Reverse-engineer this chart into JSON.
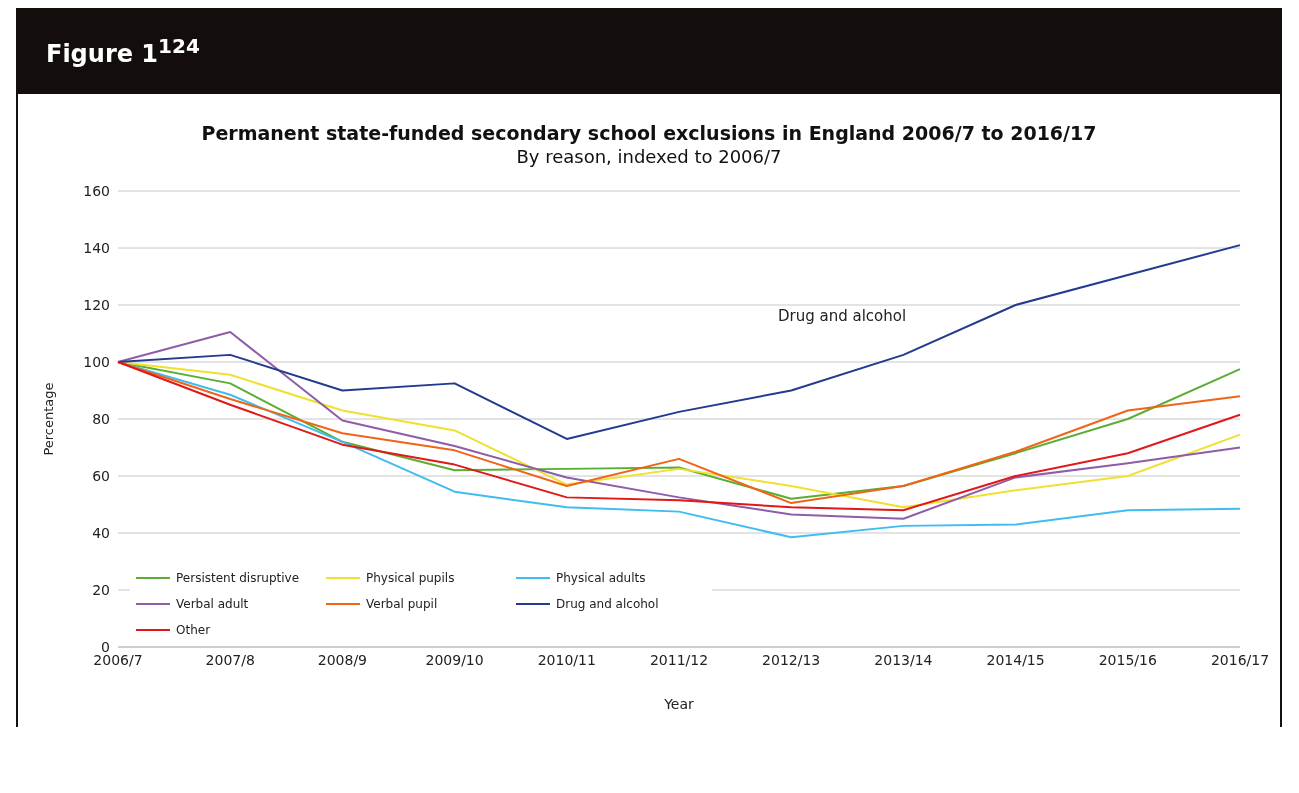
{
  "chart_data": {
    "type": "line",
    "title": "Permanent state-funded secondary school exclusions in England 2006/7 to 2016/17",
    "subtitle": "By reason, indexed to 2006/7",
    "xlabel": "Year",
    "ylabel": "Percentage",
    "annotations": [
      "Figure 1$^{124}$",
      "Drug and alcohol"
    ],
    "categories": [
      "2006/7",
      "2007/8",
      "2008/9",
      "2009/10",
      "2010/11",
      "2011/12",
      "2012/13",
      "2013/14",
      "2014/15",
      "2015/16",
      "2016/17"
    ],
    "series": [
      {
        "name": "Persistent disruptive",
        "color": "#5aae32",
        "values": [
          100,
          92.5,
          72,
          62,
          62.5,
          63,
          52,
          56.5,
          68,
          80,
          97.5
        ]
      },
      {
        "name": "Physical pupils",
        "color": "#f0e030",
        "values": [
          100,
          95.5,
          83,
          76,
          57,
          62.5,
          56.5,
          49,
          55,
          60,
          74.5
        ]
      },
      {
        "name": "Physical adults",
        "color": "#3fbdf0",
        "values": [
          100,
          88.5,
          72,
          54.5,
          49,
          47.5,
          38.5,
          42.5,
          43,
          48,
          48.5
        ]
      },
      {
        "name": "Verbal adult",
        "color": "#8e5ca8",
        "values": [
          100,
          110.5,
          79.5,
          70.5,
          59.5,
          52.5,
          46.5,
          45,
          59.5,
          64.5,
          70
        ]
      },
      {
        "name": "Verbal pupil",
        "color": "#f06418",
        "values": [
          100,
          87,
          75,
          69,
          56.5,
          66,
          50.5,
          56.5,
          68.5,
          83,
          88
        ]
      },
      {
        "name": "Drug and alcohol",
        "color": "#243a8e",
        "values": [
          100,
          102.5,
          90,
          92.5,
          73,
          82.5,
          90,
          102.5,
          120,
          130.5,
          141
        ]
      },
      {
        "name": "Other",
        "color": "#e01818",
        "values": [
          100,
          85,
          71,
          64,
          52.5,
          51.5,
          49,
          48,
          60,
          68,
          81.5
        ]
      }
    ],
    "ylim": [
      0,
      160
    ],
    "yticks": [
      0,
      20,
      40,
      60,
      80,
      100,
      120,
      140,
      160
    ],
    "grid": "y",
    "legend": "bottom left",
    "marker": "none",
    "line_style": "solid"
  }
}
